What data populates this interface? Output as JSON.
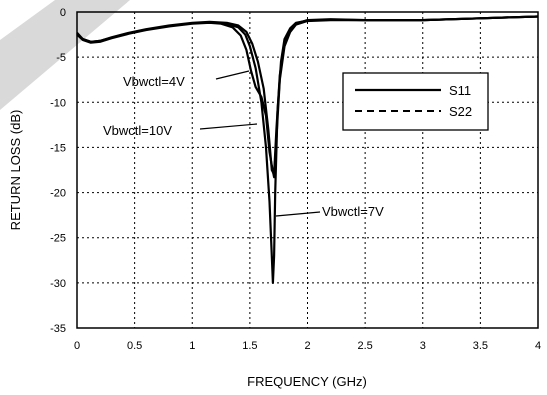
{
  "chart_data": {
    "type": "line",
    "title": "",
    "xlabel": "FREQUENCY (GHz)",
    "ylabel": "RETURN LOSS (dB)",
    "xlim": [
      0,
      4
    ],
    "ylim": [
      -35,
      0
    ],
    "xticks": [
      "0",
      "0.5",
      "1",
      "1.5",
      "2",
      "2.5",
      "3",
      "3.5",
      "4"
    ],
    "yticks": [
      "0",
      "-5",
      "-10",
      "-15",
      "-20",
      "-25",
      "-30",
      "-35"
    ],
    "grid": true,
    "legend": {
      "position": "top-right",
      "entries": [
        {
          "label": "S11",
          "style": "solid"
        },
        {
          "label": "S22",
          "style": "dashed"
        }
      ]
    },
    "annotations": [
      {
        "text": "Vbwctl=4V",
        "x": 1.5,
        "y": -5.0
      },
      {
        "text": "Vbwctl=10V",
        "x": 1.52,
        "y": -9.6
      },
      {
        "text": "Vbwctl=7V",
        "x": 1.72,
        "y": -24.0
      }
    ],
    "series": [
      {
        "label": "Vbwctl=4V",
        "style": "solid",
        "x": [
          0,
          0.05,
          0.12,
          0.2,
          0.3,
          0.45,
          0.6,
          0.8,
          1.0,
          1.15,
          1.3,
          1.4,
          1.47,
          1.52,
          1.57,
          1.62,
          1.66,
          1.69,
          1.71,
          1.73,
          1.76,
          1.8,
          1.85,
          1.9,
          2.0,
          2.2,
          2.5,
          3.0,
          3.5,
          4.0
        ],
        "y": [
          -2.3,
          -3.0,
          -3.3,
          -3.2,
          -2.8,
          -2.3,
          -1.9,
          -1.5,
          -1.2,
          -1.1,
          -1.2,
          -1.5,
          -2.2,
          -3.5,
          -5.5,
          -8.5,
          -13.0,
          -17.5,
          -18.0,
          -13.0,
          -7.0,
          -3.5,
          -2.0,
          -1.3,
          -0.9,
          -0.8,
          -0.9,
          -0.9,
          -0.7,
          -0.5
        ]
      },
      {
        "label": "Vbwctl=10V",
        "style": "solid",
        "x": [
          0,
          0.05,
          0.12,
          0.2,
          0.3,
          0.45,
          0.6,
          0.8,
          1.0,
          1.15,
          1.25,
          1.35,
          1.42,
          1.47,
          1.51,
          1.55,
          1.6,
          1.64,
          1.67,
          1.69,
          1.71,
          1.73,
          1.76,
          1.8,
          1.85,
          1.9,
          2.0,
          2.2,
          2.5,
          3.0,
          3.5,
          4.0
        ],
        "y": [
          -2.5,
          -3.1,
          -3.4,
          -3.3,
          -2.9,
          -2.4,
          -2.0,
          -1.6,
          -1.3,
          -1.2,
          -1.3,
          -1.7,
          -2.6,
          -4.2,
          -6.5,
          -8.3,
          -9.4,
          -11.5,
          -15.5,
          -17.0,
          -18.3,
          -14.0,
          -7.5,
          -3.8,
          -2.2,
          -1.4,
          -1.0,
          -0.9,
          -0.9,
          -0.9,
          -0.7,
          -0.5
        ]
      },
      {
        "label": "Vbwctl=7V",
        "style": "solid",
        "x": [
          0,
          0.05,
          0.12,
          0.2,
          0.3,
          0.45,
          0.6,
          0.8,
          1.0,
          1.15,
          1.3,
          1.4,
          1.46,
          1.5,
          1.55,
          1.6,
          1.64,
          1.67,
          1.69,
          1.7,
          1.71,
          1.72,
          1.74,
          1.77,
          1.8,
          1.85,
          1.9,
          2.0,
          2.2,
          2.5,
          3.0,
          3.5,
          4.0
        ],
        "y": [
          -2.4,
          -3.0,
          -3.3,
          -3.2,
          -2.85,
          -2.35,
          -1.95,
          -1.55,
          -1.25,
          -1.15,
          -1.3,
          -1.7,
          -2.5,
          -3.8,
          -6.2,
          -10.0,
          -15.0,
          -21.0,
          -27.0,
          -30.0,
          -27.0,
          -20.0,
          -11.0,
          -5.5,
          -3.0,
          -1.8,
          -1.2,
          -0.95,
          -0.85,
          -0.9,
          -0.9,
          -0.7,
          -0.5
        ]
      }
    ]
  }
}
